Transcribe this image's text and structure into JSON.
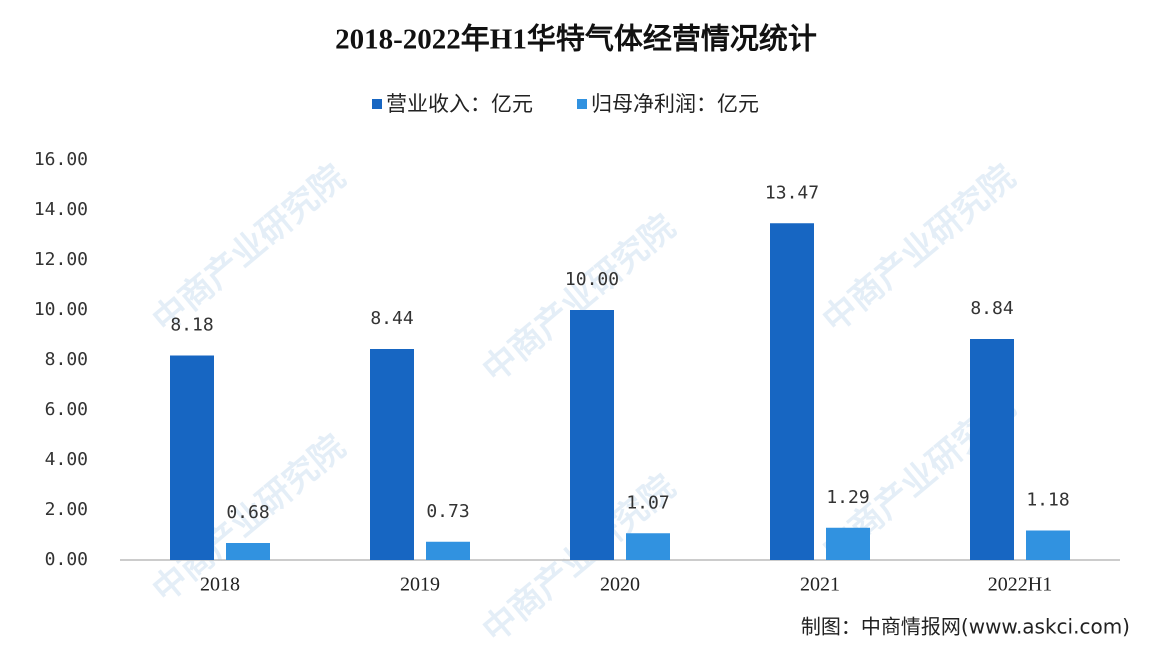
{
  "chart_data": {
    "type": "bar",
    "title": "2018-2022年H1华特气体经营情况统计",
    "categories": [
      "2018",
      "2019",
      "2020",
      "2021",
      "2022H1"
    ],
    "series": [
      {
        "name": "营业收入：亿元",
        "color": "#1766c2",
        "values": [
          8.18,
          8.44,
          10,
          13.47,
          8.84
        ],
        "value_labels": [
          "8.18",
          "8.44",
          "10.00",
          "13.47",
          "8.84"
        ]
      },
      {
        "name": "归母净利润：亿元",
        "color": "#3192e0",
        "values": [
          0.68,
          0.73,
          1.07,
          1.29,
          1.18
        ]
      }
    ],
    "ylim": [
      0,
      16
    ],
    "yticks": [
      {
        "value": 0,
        "label": "0.00"
      },
      {
        "value": 2,
        "label": "2.00"
      },
      {
        "value": 4,
        "label": "4.00"
      },
      {
        "value": 6,
        "label": "6.00"
      },
      {
        "value": 8,
        "label": "8.00"
      },
      {
        "value": 10,
        "label": "10.00"
      },
      {
        "value": 12,
        "label": "12.00"
      },
      {
        "value": 14,
        "label": "14.00"
      },
      {
        "value": 16,
        "label": "16.00"
      }
    ],
    "grid": false,
    "legend": "top",
    "source": "制图：中商情报网(www.askci.com)",
    "watermark": "中商产业研究院"
  }
}
